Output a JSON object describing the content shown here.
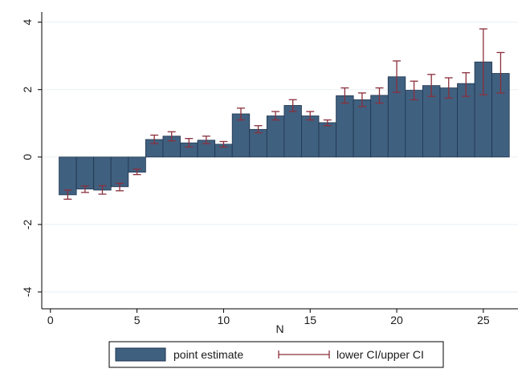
{
  "chart_data": {
    "type": "bar",
    "title": "",
    "xlabel": "N",
    "ylabel": "",
    "xlim": [
      -0.5,
      27
    ],
    "ylim": [
      -4.5,
      4.3
    ],
    "xticks": [
      0,
      5,
      10,
      15,
      20,
      25
    ],
    "xtick_labels": [
      "0",
      "5",
      "10",
      "15",
      "20",
      "25"
    ],
    "yticks": [
      -4,
      -2,
      0,
      2,
      4
    ],
    "ytick_labels": [
      "-4",
      "-2",
      "0",
      "2",
      "4"
    ],
    "grid": "horizontal",
    "bar_width": 1,
    "x": [
      1,
      2,
      3,
      4,
      5,
      6,
      7,
      8,
      9,
      10,
      11,
      12,
      13,
      14,
      15,
      16,
      17,
      18,
      19,
      20,
      21,
      22,
      23,
      24,
      25,
      26
    ],
    "series": [
      {
        "name": "point estimate",
        "values": [
          -1.12,
          -0.95,
          -0.98,
          -0.88,
          -0.45,
          0.52,
          0.62,
          0.42,
          0.5,
          0.38,
          1.28,
          0.82,
          1.22,
          1.53,
          1.22,
          1.02,
          1.82,
          1.7,
          1.83,
          2.38,
          1.98,
          2.12,
          2.05,
          2.18,
          2.82,
          2.48
        ],
        "color": "#40607f"
      },
      {
        "name": "lower CI/upper CI",
        "lower": [
          -1.25,
          -1.05,
          -1.1,
          -1.0,
          -0.52,
          0.4,
          0.48,
          0.3,
          0.4,
          0.3,
          1.1,
          0.72,
          1.1,
          1.35,
          1.1,
          0.93,
          1.6,
          1.5,
          1.6,
          1.92,
          1.7,
          1.8,
          1.75,
          1.8,
          1.85,
          1.9
        ],
        "upper": [
          -0.98,
          -0.86,
          -0.85,
          -0.78,
          -0.36,
          0.65,
          0.75,
          0.55,
          0.62,
          0.46,
          1.45,
          0.93,
          1.35,
          1.7,
          1.35,
          1.1,
          2.05,
          1.9,
          2.05,
          2.85,
          2.25,
          2.45,
          2.35,
          2.5,
          3.8,
          3.1
        ],
        "color": "#8b2f3c"
      }
    ],
    "legend": {
      "placement": "bottom-center",
      "entries": [
        "point estimate",
        "lower CI/upper CI"
      ]
    },
    "colors": {
      "bar_fill": "#40607f",
      "bar_stroke": "#1f3550",
      "ci": "#8b2f3c",
      "grid": "#eaf0f4",
      "axis": "#000000"
    }
  }
}
